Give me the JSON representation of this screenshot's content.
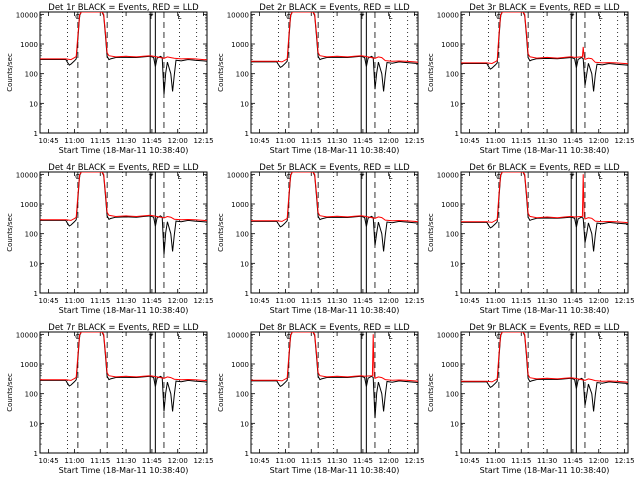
{
  "chart_data": {
    "type": "line",
    "layout": "3x3 grid of panels",
    "xlabel": "Start Time (18-Mar-11 10:38:40)",
    "ylabel": "Counts/sec",
    "x_ticks": [
      "10:45",
      "11:00",
      "11:15",
      "11:30",
      "11:45",
      "12:00",
      "12:15"
    ],
    "x_tick_minutes": [
      45,
      60,
      75,
      90,
      105,
      120,
      135
    ],
    "xlim_minutes_after_10h": [
      40,
      137
    ],
    "yscale": "log",
    "ylim": [
      1,
      12000
    ],
    "y_ticks": [
      1,
      10,
      100,
      1000,
      10000
    ],
    "y_tick_labels": [
      "1",
      "10",
      "100",
      "1000",
      "10000"
    ],
    "marker_labels": {
      "saa_in": "O",
      "saa_out": "L"
    },
    "series_colors": {
      "Events": "#000000",
      "LLD": "#ff0000"
    },
    "panels": [
      {
        "title": "Det 1r BLACK = Events, RED = LLD",
        "base": 300,
        "flare": 350,
        "dip": 20,
        "spike": 0
      },
      {
        "title": "Det 2r BLACK = Events, RED = LLD",
        "base": 250,
        "flare": 350,
        "dip": 30,
        "spike": 0
      },
      {
        "title": "Det 3r BLACK = Events, RED = LLD",
        "base": 220,
        "flare": 320,
        "dip": 40,
        "spike": 800
      },
      {
        "title": "Det 4r BLACK = Events, RED = LLD",
        "base": 280,
        "flare": 360,
        "dip": 20,
        "spike": 0
      },
      {
        "title": "Det 5r BLACK = Events, RED = LLD",
        "base": 260,
        "flare": 350,
        "dip": 40,
        "spike": 0
      },
      {
        "title": "Det 6r BLACK = Events, RED = LLD",
        "base": 240,
        "flare": 330,
        "dip": 50,
        "spike": 10000
      },
      {
        "title": "Det 7r BLACK = Events, RED = LLD",
        "base": 280,
        "flare": 350,
        "dip": 25,
        "spike": 0
      },
      {
        "title": "Det 8r BLACK = Events, RED = LLD",
        "base": 270,
        "flare": 350,
        "dip": 15,
        "spike": 10000
      },
      {
        "title": "Det 9r BLACK = Events, RED = LLD",
        "base": 250,
        "flare": 300,
        "dip": 40,
        "spike": 0
      }
    ]
  }
}
